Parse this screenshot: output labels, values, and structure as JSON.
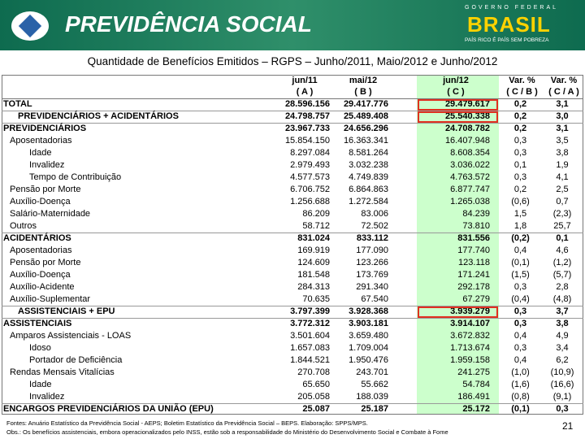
{
  "header": {
    "logo": "PREVIDÊNCIA SOCIAL",
    "gov": "GOVERNO FEDERAL",
    "brand": "BRASIL",
    "slogan": "PAÍS RICO É PAÍS SEM POBREZA"
  },
  "title": "Quantidade de Benefícios Emitidos – RGPS – Junho/2011, Maio/2012 e Junho/2012",
  "table": {
    "columns": [
      [
        "jun/11",
        "( A )"
      ],
      [
        "mai/12",
        "( B )"
      ],
      [
        "jun/12",
        "( C )"
      ],
      [
        "Var. %",
        "( C / B )"
      ],
      [
        "Var. %",
        "( C / A )"
      ]
    ],
    "rows": [
      [
        "TOTAL",
        "28.596.156",
        "29.417.776",
        "29.479.617",
        "0,2",
        "3,1"
      ],
      [
        "PREVIDENCIÁRIOS + ACIDENTÁRIOS",
        "24.798.757",
        "25.489.408",
        "25.540.338",
        "0,2",
        "3,0"
      ],
      [
        "PREVIDENCIÁRIOS",
        "23.967.733",
        "24.656.296",
        "24.708.782",
        "0,2",
        "3,1"
      ],
      [
        "Aposentadorias",
        "15.854.150",
        "16.363.341",
        "16.407.948",
        "0,3",
        "3,5"
      ],
      [
        "Idade",
        "8.297.084",
        "8.581.264",
        "8.608.354",
        "0,3",
        "3,8"
      ],
      [
        "Invalidez",
        "2.979.493",
        "3.032.238",
        "3.036.022",
        "0,1",
        "1,9"
      ],
      [
        "Tempo de Contribuição",
        "4.577.573",
        "4.749.839",
        "4.763.572",
        "0,3",
        "4,1"
      ],
      [
        "Pensão por Morte",
        "6.706.752",
        "6.864.863",
        "6.877.747",
        "0,2",
        "2,5"
      ],
      [
        "Auxílio-Doença",
        "1.256.688",
        "1.272.584",
        "1.265.038",
        "(0,6)",
        "0,7"
      ],
      [
        "Salário-Maternidade",
        "86.209",
        "83.006",
        "84.239",
        "1,5",
        "(2,3)"
      ],
      [
        "Outros",
        "58.712",
        "72.502",
        "73.810",
        "1,8",
        "25,7"
      ],
      [
        "ACIDENTÁRIOS",
        "831.024",
        "833.112",
        "831.556",
        "(0,2)",
        "0,1"
      ],
      [
        "Aposentadorias",
        "169.919",
        "177.090",
        "177.740",
        "0,4",
        "4,6"
      ],
      [
        "Pensão por Morte",
        "124.609",
        "123.266",
        "123.118",
        "(0,1)",
        "(1,2)"
      ],
      [
        "Auxílio-Doença",
        "181.548",
        "173.769",
        "171.241",
        "(1,5)",
        "(5,7)"
      ],
      [
        "Auxílio-Acidente",
        "284.313",
        "291.340",
        "292.178",
        "0,3",
        "2,8"
      ],
      [
        "Auxílio-Suplementar",
        "70.635",
        "67.540",
        "67.279",
        "(0,4)",
        "(4,8)"
      ],
      [
        "ASSISTENCIAIS + EPU",
        "3.797.399",
        "3.928.368",
        "3.939.279",
        "0,3",
        "3,7"
      ],
      [
        "ASSISTENCIAIS",
        "3.772.312",
        "3.903.181",
        "3.914.107",
        "0,3",
        "3,8"
      ],
      [
        "Amparos Assistenciais - LOAS",
        "3.501.604",
        "3.659.480",
        "3.672.832",
        "0,4",
        "4,9"
      ],
      [
        "Idoso",
        "1.657.083",
        "1.709.004",
        "1.713.674",
        "0,3",
        "3,4"
      ],
      [
        "Portador de Deficiência",
        "1.844.521",
        "1.950.476",
        "1.959.158",
        "0,4",
        "6,2"
      ],
      [
        "Rendas Mensais Vitalícias",
        "270.708",
        "243.701",
        "241.275",
        "(1,0)",
        "(10,9)"
      ],
      [
        "Idade",
        "65.650",
        "55.662",
        "54.784",
        "(1,6)",
        "(16,6)"
      ],
      [
        "Invalidez",
        "205.058",
        "188.039",
        "186.491",
        "(0,8)",
        "(9,1)"
      ],
      [
        "ENCARGOS PREVIDENCIÁRIOS DA UNIÃO (EPU)",
        "25.087",
        "25.187",
        "25.172",
        "(0,1)",
        "0,3"
      ]
    ]
  },
  "footnotes": [
    "Fontes: Anuário Estatístico da Previdência Social - AEPS; Boletim Estatístico da Previdência Social – BEPS.  Elaboração: SPPS/MPS.",
    "Obs.: Os benefícios assistenciais, embora operacionalizados pelo INSS, estão sob a responsabilidade do Ministério do Desenvolvimento Social e Combate à Fome"
  ],
  "page_number": "21"
}
